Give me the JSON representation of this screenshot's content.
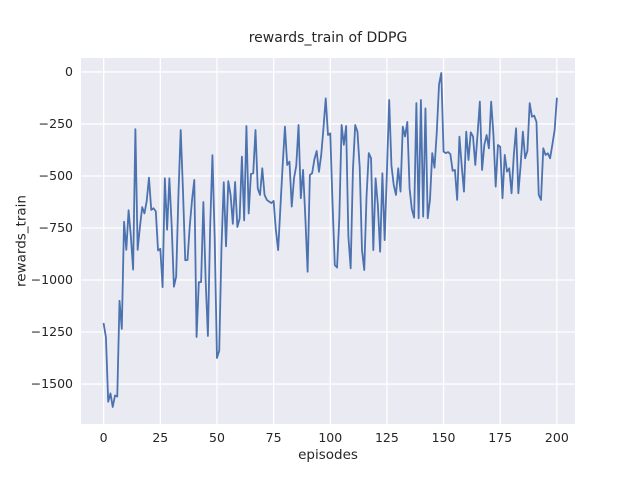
{
  "chart_data": {
    "type": "line",
    "title": "rewards_train of DDPG",
    "xlabel": "episodes",
    "ylabel": "rewards_train",
    "x_ticks": [
      0,
      25,
      50,
      75,
      100,
      125,
      150,
      175,
      200
    ],
    "y_ticks": [
      0,
      -250,
      -500,
      -750,
      -1000,
      -1250,
      -1500
    ],
    "xlim": [
      -10,
      208
    ],
    "ylim": [
      -1692,
      67
    ],
    "grid": true,
    "legend_position": "none",
    "style": {
      "figure_bg": "#FFFFFF",
      "axes_bg": "#EAEAF2",
      "grid_color": "#FFFFFF",
      "line_color": "#4C72B0",
      "text_color": "#262626"
    },
    "series": [
      {
        "name": "rewards_train",
        "x_start": 0,
        "x_step": 1,
        "values": [
          -1210,
          -1275,
          -1585,
          -1545,
          -1610,
          -1555,
          -1560,
          -1100,
          -1235,
          -720,
          -855,
          -665,
          -790,
          -950,
          -275,
          -855,
          -745,
          -650,
          -680,
          -620,
          -508,
          -663,
          -655,
          -670,
          -858,
          -850,
          -1034,
          -511,
          -758,
          -511,
          -735,
          -1032,
          -984,
          -590,
          -279,
          -570,
          -905,
          -904,
          -740,
          -615,
          -519,
          -1274,
          -1010,
          -1010,
          -625,
          -1000,
          -1269,
          -745,
          -400,
          -800,
          -1375,
          -1340,
          -841,
          -530,
          -838,
          -525,
          -590,
          -730,
          -529,
          -745,
          -705,
          -407,
          -713,
          -260,
          -680,
          -490,
          -487,
          -279,
          -560,
          -591,
          -463,
          -591,
          -615,
          -623,
          -630,
          -620,
          -760,
          -856,
          -650,
          -447,
          -263,
          -447,
          -431,
          -647,
          -511,
          -450,
          -255,
          -607,
          -471,
          -700,
          -960,
          -495,
          -487,
          -420,
          -380,
          -480,
          -400,
          -270,
          -127,
          -303,
          -295,
          -631,
          -928,
          -940,
          -700,
          -255,
          -350,
          -260,
          -792,
          -944,
          -471,
          -255,
          -287,
          -460,
          -856,
          -952,
          -600,
          -390,
          -415,
          -856,
          -511,
          -640,
          -864,
          -487,
          -808,
          -479,
          -135,
          -450,
          -543,
          -591,
          -463,
          -575,
          -263,
          -310,
          -240,
          -560,
          -660,
          -700,
          -150,
          -703,
          -135,
          -695,
          -175,
          -703,
          -615,
          -390,
          -460,
          -290,
          -60,
          -5,
          -383,
          -390,
          -385,
          -395,
          -475,
          -471,
          -615,
          -311,
          -450,
          -575,
          -287,
          -423,
          -290,
          -310,
          -447,
          -300,
          -143,
          -471,
          -350,
          -303,
          -367,
          -143,
          -300,
          -551,
          -351,
          -360,
          -607,
          -399,
          -479,
          -463,
          -583,
          -399,
          -271,
          -583,
          -450,
          -287,
          -415,
          -380,
          -150,
          -215,
          -210,
          -240,
          -591,
          -615,
          -367,
          -399,
          -391,
          -415,
          -350,
          -280,
          -127
        ]
      }
    ]
  }
}
